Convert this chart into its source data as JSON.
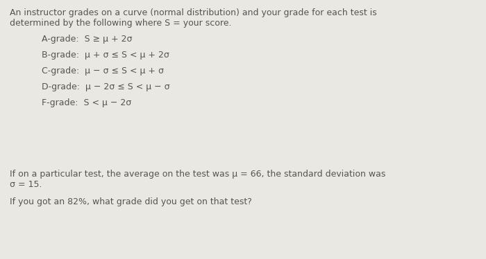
{
  "background_color": "#eae8e2",
  "text_color": "#555555",
  "font_size_body": 9.0,
  "intro_line1": "An instructor grades on a curve (normal distribution) and your grade for each test is",
  "intro_line2": "determined by the following where S = your score.",
  "grades": [
    "A-grade:  S ≥ μ + 2σ",
    "B-grade:  μ + σ ≤ S < μ + 2σ",
    "C-grade:  μ − σ ≤ S < μ + σ",
    "D-grade:  μ − 2σ ≤ S < μ − σ",
    "F-grade:  S < μ − 2σ"
  ],
  "bottom_line1": "If on a particular test, the average on the test was μ = 66, the standard deviation was",
  "bottom_line2": "σ = 15.",
  "bottom_line3": "If you got an 82%, what grade did you get on that test?"
}
